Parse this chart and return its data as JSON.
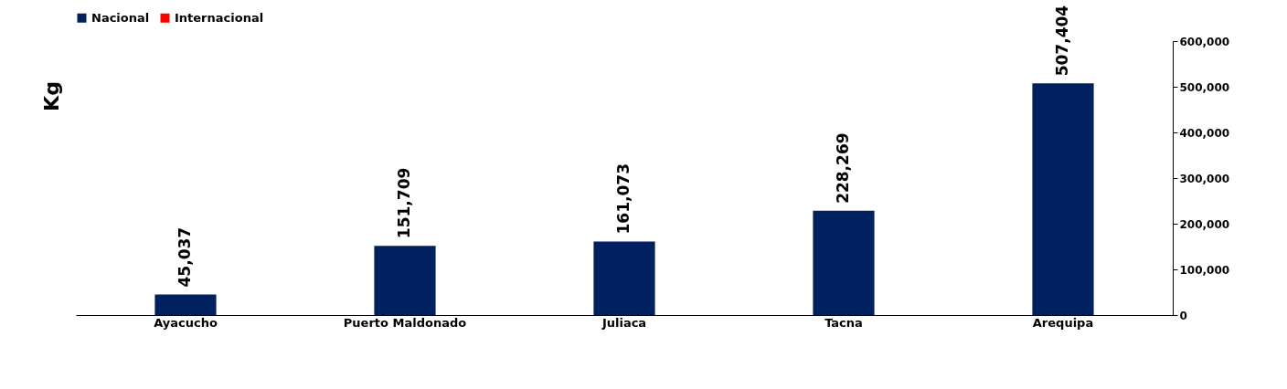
{
  "chart_data": {
    "type": "bar",
    "ylabel": "Kg",
    "categories": [
      "Ayacucho",
      "Puerto Maldonado",
      "Juliaca",
      "Tacna",
      "Arequipa"
    ],
    "series": [
      {
        "name": "Nacional",
        "color": "#002060",
        "values": [
          45037,
          151709,
          161073,
          228269,
          507404
        ],
        "value_labels": [
          "45,037",
          "151,709",
          "161,073",
          "228,269",
          "507,404"
        ]
      },
      {
        "name": "Internacional",
        "color": "#ff0000",
        "values": [
          null,
          null,
          null,
          null,
          null
        ]
      }
    ],
    "ylim": [
      0,
      600000
    ],
    "yticks": [
      {
        "value": 0,
        "label": "0"
      },
      {
        "value": 100000,
        "label": "100,000"
      },
      {
        "value": 200000,
        "label": "200,000"
      },
      {
        "value": 300000,
        "label": "300,000"
      },
      {
        "value": 400000,
        "label": "400,000"
      },
      {
        "value": 500000,
        "label": "500,000"
      },
      {
        "value": 600000,
        "label": "600,000"
      }
    ],
    "grid": false,
    "legend": "top"
  }
}
